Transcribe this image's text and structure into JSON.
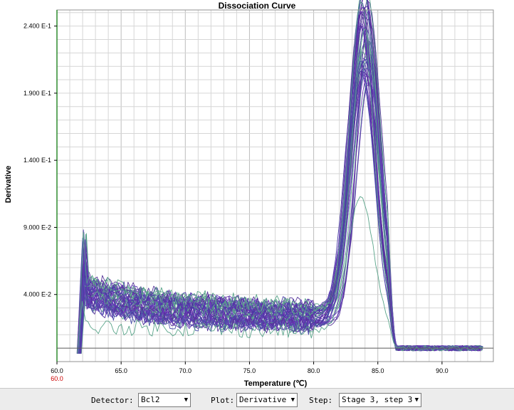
{
  "chart_data": {
    "type": "line",
    "title": "Dissociation Curve",
    "xlabel": "Temperature (℃)",
    "ylabel": "Derivative",
    "xlim": [
      60.0,
      94.0
    ],
    "ylim": [
      -0.01,
      0.252
    ],
    "x_ticks": [
      60.0,
      65.0,
      70.0,
      75.0,
      80.0,
      85.0,
      90.0
    ],
    "x_tick_labels": [
      "60.0",
      "65.0",
      "70.0",
      "75.0",
      "80.0",
      "85.0",
      "90.0"
    ],
    "x_start_marker": "60.0",
    "y_ticks": [
      0.04,
      0.09,
      0.14,
      0.19,
      0.24
    ],
    "y_tick_labels": [
      "4.000 E-2",
      "9.000 E-2",
      "1.400 E-1",
      "1.900 E-1",
      "2.400 E-1"
    ],
    "grid": true,
    "colors": {
      "primary_series": "#5a2ca0",
      "secondary_series": "#3a9a6a",
      "marker_label": "#cc0000",
      "baseline": "#606060",
      "left_axis": "#2e8b2e"
    },
    "curves": {
      "count": 48,
      "typical_plateau": 0.03,
      "typical_peak_temperature": 84.0,
      "peak_range": [
        0.178,
        0.25
      ],
      "low_outlier_peak": 0.1,
      "start_spike_max": 0.09
    }
  },
  "toolbar": {
    "detector_label": "Detector:",
    "detector_value": "Bcl2",
    "plot_label": "Plot:",
    "plot_value": "Derivative",
    "step_label": "Step:",
    "step_value": "Stage 3, step 3"
  }
}
